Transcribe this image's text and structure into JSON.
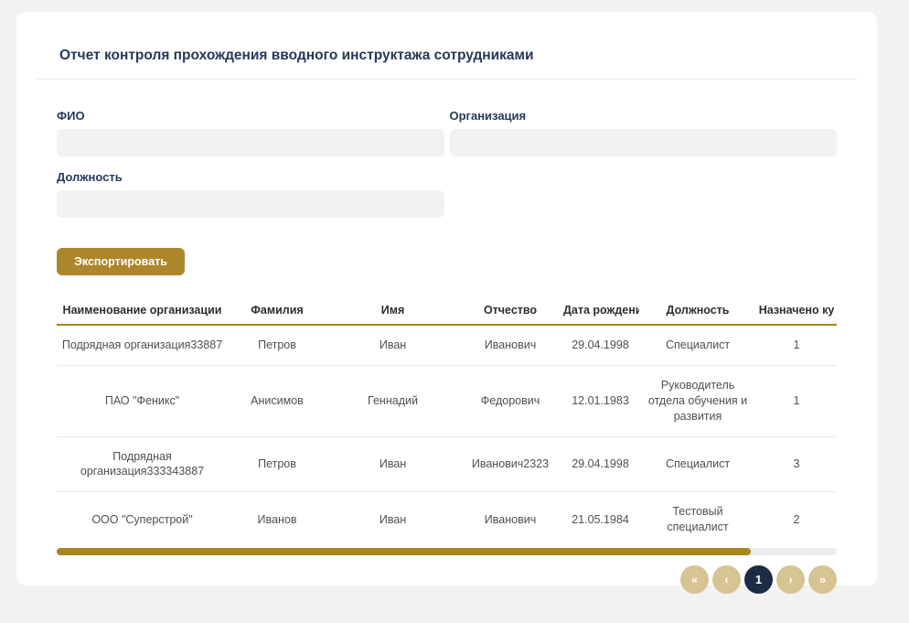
{
  "page": {
    "title": "Отчет контроля прохождения вводного инструктажа сотрудниками"
  },
  "filters": {
    "fio": {
      "label": "ФИО",
      "value": "",
      "placeholder": ""
    },
    "organization": {
      "label": "Организация",
      "value": "",
      "placeholder": ""
    },
    "position": {
      "label": "Должность",
      "value": "",
      "placeholder": ""
    }
  },
  "actions": {
    "export_label": "Экспортировать"
  },
  "table": {
    "columns": [
      "Наименование организации",
      "Фамилия",
      "Имя",
      "Отчество",
      "Дата рождения",
      "Должность",
      "Назначено ку"
    ],
    "rows": [
      [
        "Подрядная организация33887",
        "Петров",
        "Иван",
        "Иванович",
        "29.04.1998",
        "Специалист",
        "1"
      ],
      [
        "ПАО \"Феникс\"",
        "Анисимов",
        "Геннадий",
        "Федорович",
        "12.01.1983",
        "Руководитель отдела обучения и развития",
        "1"
      ],
      [
        "Подрядная организация333343887",
        "Петров",
        "Иван",
        "Иванович2323",
        "29.04.1998",
        "Специалист",
        "3"
      ],
      [
        "ООО \"Суперстрой\"",
        "Иванов",
        "Иван",
        "Иванович",
        "21.05.1984",
        "Тестовый специалист",
        "2"
      ]
    ]
  },
  "pagination": {
    "first_label": "«",
    "prev_label": "‹",
    "current_page": "1",
    "next_label": "›",
    "last_label": "»"
  },
  "colors": {
    "accent_gold": "#a8861f",
    "button_gold": "#ad852b",
    "title_navy": "#24395b",
    "pagination_tan": "#d6c492",
    "pagination_active_navy": "#1e2b47"
  }
}
